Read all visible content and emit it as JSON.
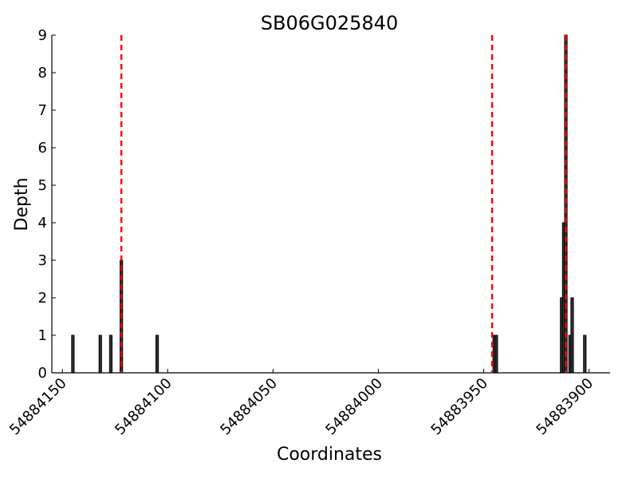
{
  "chart_data": {
    "type": "bar",
    "title": "SB06G025840",
    "x_label": "Coordinates",
    "y_label": "Depth",
    "x": [
      54884145,
      54884132,
      54884127,
      54884122,
      54884105,
      54883945,
      54883944,
      54883913,
      54883912,
      54883911,
      54883909,
      54883908,
      54883902
    ],
    "values": [
      1,
      1,
      1,
      3,
      1,
      1,
      1,
      2,
      4,
      9,
      1,
      2,
      1
    ],
    "color": "#333333",
    "xlim": [
      54884155,
      54883890
    ],
    "xticks": [
      54884150,
      54884100,
      54884050,
      54884000,
      54883950,
      54883900
    ],
    "ylim": [
      0,
      9
    ],
    "yticks": [
      0,
      1,
      2,
      3,
      4,
      5,
      6,
      7,
      8,
      9
    ],
    "vlines": [
      54884122,
      54883946,
      54883911
    ],
    "vline_color": "#ff0000"
  }
}
